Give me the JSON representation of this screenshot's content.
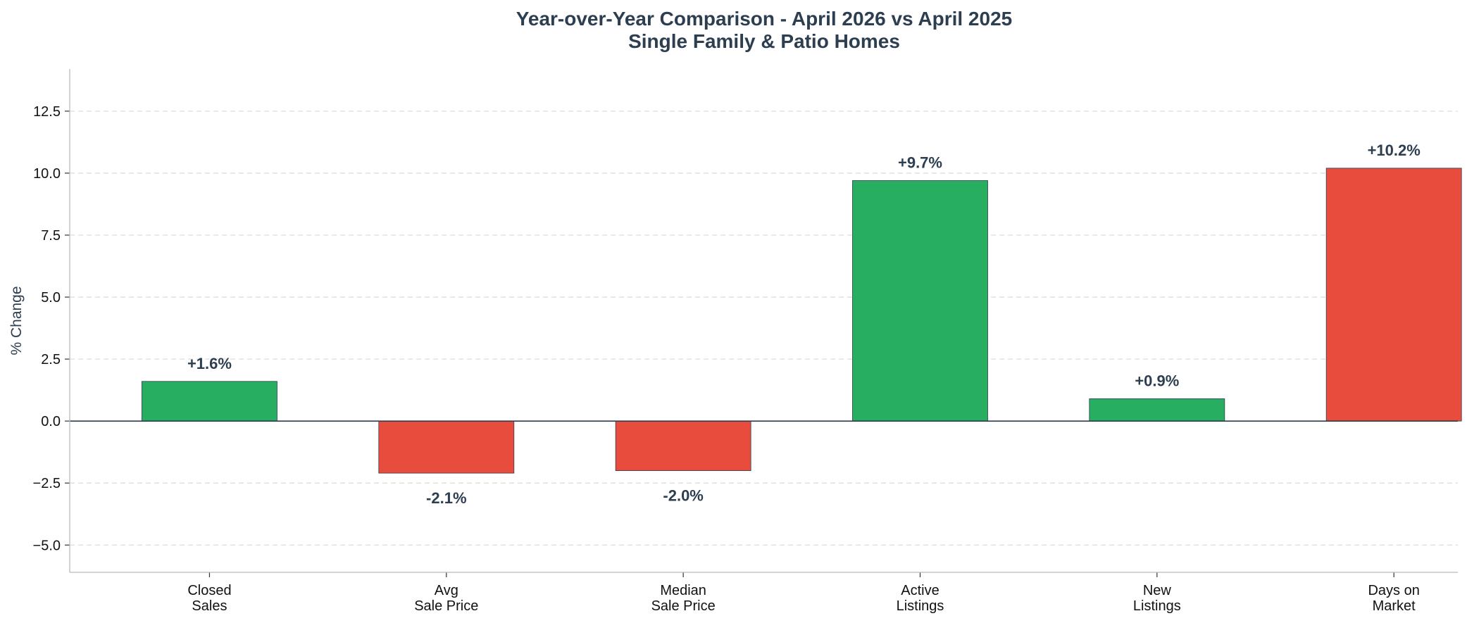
{
  "chart_data": {
    "type": "bar",
    "title": "Year-over-Year Comparison - April 2026 vs April 2025",
    "subtitle": "Single Family & Patio Homes",
    "xlabel": "",
    "ylabel": "% Change",
    "categories": [
      [
        "Closed",
        "Sales"
      ],
      [
        "Avg",
        "Sale Price"
      ],
      [
        "Median",
        "Sale Price"
      ],
      [
        "Active",
        "Listings"
      ],
      [
        "New",
        "Listings"
      ],
      [
        "Days on",
        "Market"
      ]
    ],
    "values": [
      1.6,
      -2.1,
      -2.0,
      9.7,
      0.9,
      10.2
    ],
    "data_labels": [
      "+1.6%",
      "-2.1%",
      "-2.0%",
      "+9.7%",
      "+0.9%",
      "+10.2%"
    ],
    "bar_colors": [
      "#27ae60",
      "#e74c3c",
      "#e74c3c",
      "#27ae60",
      "#27ae60",
      "#e74c3c"
    ],
    "ylim": [
      -6.1,
      14.2
    ],
    "yticks": [
      -5.0,
      -2.5,
      0.0,
      2.5,
      5.0,
      7.5,
      10.0,
      12.5
    ],
    "ytick_labels": [
      "−5.0",
      "−2.5",
      "0.0",
      "2.5",
      "5.0",
      "7.5",
      "10.0",
      "12.5"
    ],
    "grid": "horizontal-dashed",
    "legend": "none"
  },
  "colors": {
    "positive": "#27ae60",
    "negative": "#e74c3c",
    "text": "#2c3e50",
    "grid": "#dddddd",
    "zero_line": "#2c3e50"
  }
}
